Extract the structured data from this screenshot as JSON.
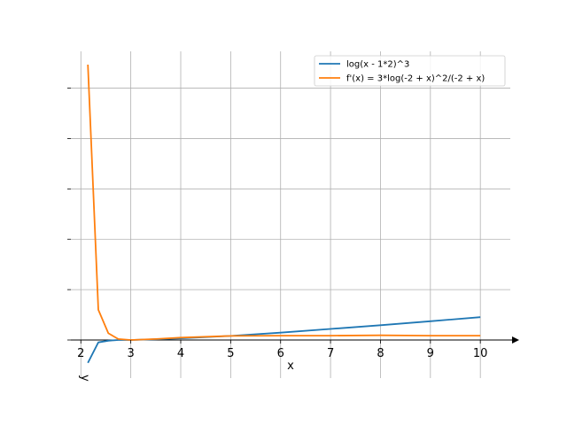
{
  "chart_data": {
    "type": "line",
    "xlabel": "x",
    "ylabel": "y",
    "xlim": [
      1.8,
      10.6
    ],
    "ylim": [
      -0.7,
      8.5
    ],
    "x_ticks": [
      2,
      3,
      4,
      5,
      6,
      7,
      8,
      9,
      10
    ],
    "y_gridlines": [
      0,
      1.5,
      3.0,
      4.5,
      6.0,
      7.5
    ],
    "grid": true,
    "legend_position": "top-right",
    "series": [
      {
        "name": "log(x - 1*2)^3",
        "color": "#1f77b4",
        "x": [
          2.14,
          2.35,
          2.55,
          2.75,
          3.0,
          3.5,
          4.0,
          5.0,
          6.0,
          7.0,
          8.0,
          9.0,
          10.0
        ],
        "y": [
          -0.68,
          -0.07,
          -0.02,
          0.0,
          0.0,
          0.02,
          0.05,
          0.12,
          0.22,
          0.33,
          0.44,
          0.56,
          0.68
        ]
      },
      {
        "name": "f'(x) = 3*log(-2 + x)^2/(-2 + x)",
        "color": "#ff7f0e",
        "x": [
          2.14,
          2.35,
          2.55,
          2.75,
          3.0,
          3.5,
          4.0,
          5.0,
          6.0,
          7.0,
          8.0,
          9.0,
          10.0
        ],
        "y": [
          8.2,
          0.9,
          0.2,
          0.03,
          0.0,
          0.03,
          0.07,
          0.12,
          0.13,
          0.13,
          0.14,
          0.13,
          0.13
        ]
      }
    ]
  }
}
